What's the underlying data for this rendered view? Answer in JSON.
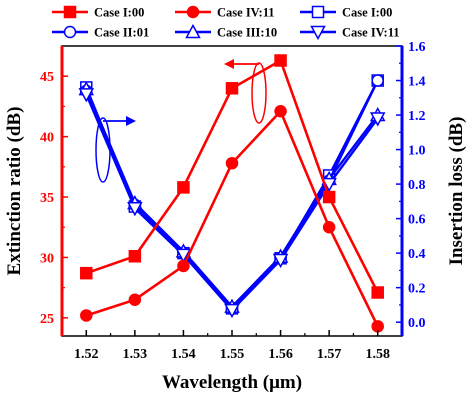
{
  "chart_data": {
    "type": "line",
    "x": [
      1.52,
      1.53,
      1.54,
      1.55,
      1.56,
      1.57,
      1.58
    ],
    "xlabel": "Wavelength (μm)",
    "xlim": [
      1.515,
      1.585
    ],
    "x_ticks": [
      "1.52",
      "1.53",
      "1.54",
      "1.55",
      "1.56",
      "1.57",
      "1.58"
    ],
    "left_axis": {
      "label": "Extinction ratio (dB)",
      "lim": [
        23.5,
        47.5
      ],
      "ticks": [
        "25",
        "30",
        "35",
        "40",
        "45"
      ],
      "color": "#ff0000"
    },
    "right_axis": {
      "label": "Insertion loss (dB)",
      "lim": [
        -0.08,
        1.6
      ],
      "ticks": [
        "0.0",
        "0.2",
        "0.4",
        "0.6",
        "0.8",
        "1.0",
        "1.2",
        "1.4",
        "1.6"
      ],
      "color": "#0000ff"
    },
    "legend": {
      "placement": "top"
    },
    "series": [
      {
        "name": "Case I:00",
        "axis": "left",
        "color": "#ff0000",
        "marker": "square-filled",
        "values": [
          28.7,
          30.1,
          35.8,
          44.0,
          46.3,
          35.0,
          27.1
        ]
      },
      {
        "name": "Case IV:11",
        "axis": "left",
        "color": "#ff0000",
        "marker": "circle-filled",
        "values": [
          25.2,
          26.5,
          29.3,
          37.8,
          42.1,
          32.5,
          24.3
        ]
      },
      {
        "name": "Case I:00",
        "axis": "right",
        "color": "#0000ff",
        "marker": "square-open",
        "values": [
          1.36,
          0.67,
          0.4,
          0.08,
          0.37,
          0.85,
          1.4
        ]
      },
      {
        "name": "Case II:01",
        "axis": "right",
        "color": "#0000ff",
        "marker": "circle-open",
        "values": [
          1.34,
          0.68,
          0.4,
          0.08,
          0.37,
          0.82,
          1.4
        ]
      },
      {
        "name": "Case III:10",
        "axis": "right",
        "color": "#0000ff",
        "marker": "triangle-up-open",
        "values": [
          1.35,
          0.69,
          0.41,
          0.09,
          0.38,
          0.83,
          1.2
        ]
      },
      {
        "name": "Case IV:11",
        "axis": "right",
        "color": "#0000ff",
        "marker": "triangle-down-open",
        "values": [
          1.32,
          0.66,
          0.39,
          0.07,
          0.36,
          0.8,
          1.18
        ]
      }
    ]
  }
}
